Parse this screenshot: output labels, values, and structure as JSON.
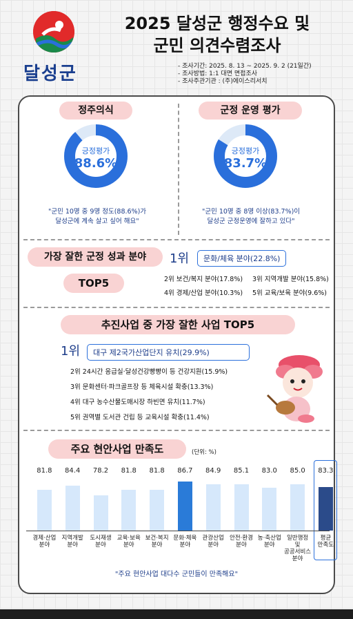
{
  "header": {
    "logo_text": "달성군",
    "title_line1": "2025 달성군 행정수요 및",
    "title_line2": "군민 의견수렴조사",
    "info": [
      "- 조사기간: 2025. 8. 13 ~ 2025. 9. 2 (21일간)",
      "- 조사방법: 1:1 대면 면접조사",
      "- 조사주관기관 : (주)에이스리서치"
    ]
  },
  "settlement": {
    "title": "정주의식",
    "label": "긍정평가",
    "value_text": "88.6%",
    "value": 88.6,
    "quote_line1": "\"군민 10명 중 9명 정도(88.6%)가",
    "quote_line2": "달성군에 계속 살고 싶어 해요\""
  },
  "governance": {
    "title": "군정 운영 평가",
    "label": "긍정평가",
    "value_text": "83.7%",
    "value": 83.7,
    "quote_line1": "\"군민 10명 중 8명 이상(83.7%)이",
    "quote_line2": "달성군 군정운영에 잘하고 있다\""
  },
  "best_field": {
    "title": "가장 잘한 군정 성과 분야",
    "subtitle": "TOP5",
    "rank1_label": "1위",
    "rank1_text": "문화/체육 분야(22.8%)",
    "ranks": [
      "2위 보건/복지 분야(17.8%)",
      "3위 지역개발 분야(15.8%)",
      "4위 경제/산업 분야(10.3%)",
      "5위 교육/보육 분야(9.6%)"
    ]
  },
  "best_project": {
    "title": "추진사업 중 가장 잘한 사업 TOP5",
    "rank1_label": "1위",
    "rank1_text": "대구 제2국가산업단지 유치(29.9%)",
    "ranks": [
      "2위  24시간 응급실·달성건강빵빵이 등 건강지원(15.9%)",
      "3위  문화센터·파크골프장 등  체육시설 확충(13.3%)",
      "4위 대구 농수산물도매시장 하빈면 유치(11.7%)",
      "5위 권역별 도서관 건립 등 교육시설 확충(11.4%)"
    ]
  },
  "satisfaction": {
    "title": "주요 현안사업 만족도",
    "unit": "(단위: %)",
    "footer_quote": "\"주요 현안사업 대다수 군민들이 만족해요\""
  },
  "chart_data": {
    "type": "bar",
    "title": "주요 현안사업 만족도",
    "ylabel": "(단위: %)",
    "ylim": [
      0,
      100
    ],
    "categories": [
      "경제·산업\n분야",
      "지역개발\n분야",
      "도시재생\n분야",
      "교육·보육\n분야",
      "보건·복지\n분야",
      "문화·체육\n분야",
      "관광산업\n분야",
      "안전·환경\n분야",
      "농·축산업\n분야",
      "일반행정\n및\n공공서비스\n분야",
      "평균\n만족도"
    ],
    "values": [
      81.8,
      84.4,
      78.2,
      81.8,
      81.8,
      86.7,
      84.9,
      85.1,
      83.0,
      85.0,
      83.3
    ],
    "value_labels": [
      "81.8",
      "84.4",
      "78.2",
      "81.8",
      "81.8",
      "86.7",
      "84.9",
      "85.1",
      "83.0",
      "85.0",
      "83.3"
    ],
    "highlight_color": "#2a7bd8",
    "average_color": "#2b4b8a",
    "bar_color": "#d6e8fb"
  },
  "colors": {
    "primary_blue": "#2a6fdb",
    "navy": "#1d3d8a",
    "pink_pill": "#f9d3d3"
  }
}
